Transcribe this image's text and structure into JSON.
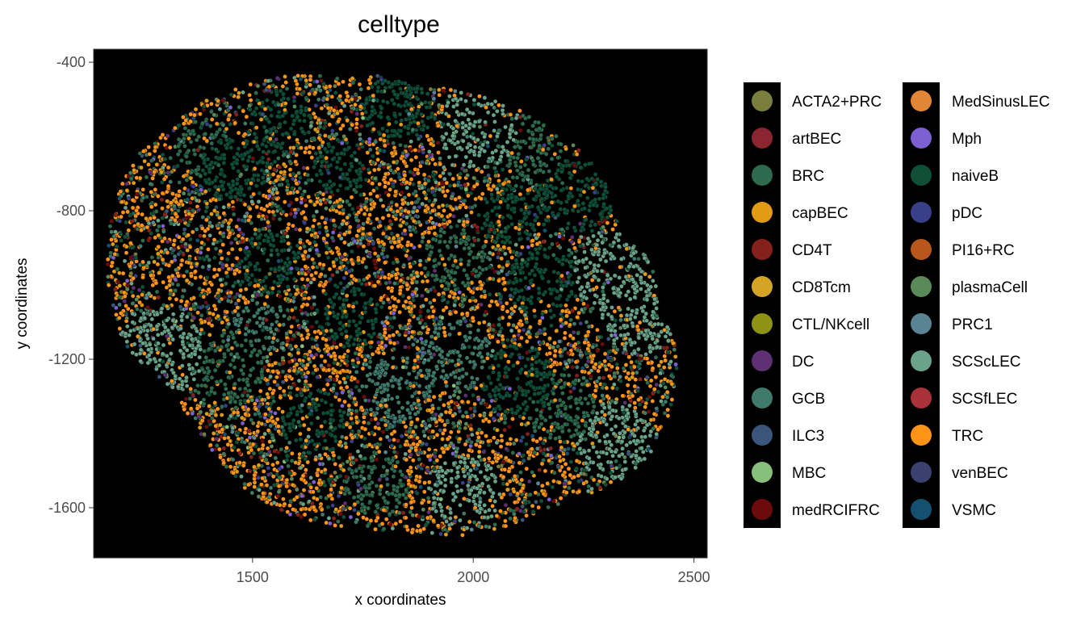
{
  "chart_data": {
    "type": "scatter",
    "title": "celltype",
    "xlabel": "x coordinates",
    "ylabel": "y coordinates",
    "xlim": [
      1140,
      2530
    ],
    "ylim": [
      -1735,
      -365
    ],
    "x_ticks": [
      1500,
      2000,
      2500
    ],
    "y_ticks": [
      -400,
      -800,
      -1200,
      -1600
    ],
    "background": "#000000",
    "grid": false,
    "legend_position": "right",
    "legend": [
      {
        "name": "ACTA2+PRC",
        "color": "#7a7d3c"
      },
      {
        "name": "artBEC",
        "color": "#8b2530"
      },
      {
        "name": "BRC",
        "color": "#2e6b4e"
      },
      {
        "name": "capBEC",
        "color": "#e29b14"
      },
      {
        "name": "CD4T",
        "color": "#86201a"
      },
      {
        "name": "CD8Tcm",
        "color": "#d4a424"
      },
      {
        "name": "CTL/NKcell",
        "color": "#8e9316"
      },
      {
        "name": "DC",
        "color": "#5f2f74"
      },
      {
        "name": "GCB",
        "color": "#3f7a6a"
      },
      {
        "name": "ILC3",
        "color": "#3b5479"
      },
      {
        "name": "MBC",
        "color": "#86c07b"
      },
      {
        "name": "medRCIFRC",
        "color": "#6b0b0b"
      },
      {
        "name": "MedSinusLEC",
        "color": "#e08636"
      },
      {
        "name": "Mph",
        "color": "#7c5fd0"
      },
      {
        "name": "naiveB",
        "color": "#0f4f38"
      },
      {
        "name": "pDC",
        "color": "#3a3f8a"
      },
      {
        "name": "PI16+RC",
        "color": "#b9561c"
      },
      {
        "name": "plasmaCell",
        "color": "#5b8a5a"
      },
      {
        "name": "PRC1",
        "color": "#5a8494"
      },
      {
        "name": "SCScLEC",
        "color": "#6aa389"
      },
      {
        "name": "SCSfLEC",
        "color": "#a8313a"
      },
      {
        "name": "TRC",
        "color": "#ff9416"
      },
      {
        "name": "venBEC",
        "color": "#3b416e"
      },
      {
        "name": "VSMC",
        "color": "#165070"
      }
    ],
    "tissue_outline": [
      [
        1200,
        -730
      ],
      [
        1225,
        -650
      ],
      [
        1300,
        -590
      ],
      [
        1380,
        -510
      ],
      [
        1460,
        -470
      ],
      [
        1560,
        -440
      ],
      [
        1640,
        -430
      ],
      [
        1720,
        -445
      ],
      [
        1780,
        -430
      ],
      [
        1860,
        -460
      ],
      [
        1960,
        -475
      ],
      [
        2060,
        -505
      ],
      [
        2160,
        -560
      ],
      [
        2250,
        -640
      ],
      [
        2300,
        -720
      ],
      [
        2320,
        -800
      ],
      [
        2335,
        -880
      ],
      [
        2380,
        -900
      ],
      [
        2410,
        -960
      ],
      [
        2420,
        -1080
      ],
      [
        2455,
        -1140
      ],
      [
        2465,
        -1260
      ],
      [
        2440,
        -1360
      ],
      [
        2400,
        -1460
      ],
      [
        2340,
        -1520
      ],
      [
        2270,
        -1560
      ],
      [
        2180,
        -1600
      ],
      [
        2080,
        -1650
      ],
      [
        1980,
        -1675
      ],
      [
        1880,
        -1670
      ],
      [
        1780,
        -1660
      ],
      [
        1680,
        -1650
      ],
      [
        1580,
        -1620
      ],
      [
        1490,
        -1560
      ],
      [
        1420,
        -1470
      ],
      [
        1370,
        -1380
      ],
      [
        1320,
        -1290
      ],
      [
        1270,
        -1230
      ],
      [
        1220,
        -1180
      ],
      [
        1185,
        -1090
      ],
      [
        1170,
        -980
      ],
      [
        1175,
        -860
      ],
      [
        1185,
        -780
      ]
    ],
    "clusters": [
      {
        "x": 1290,
        "y": -1180,
        "r": 55,
        "type": "SCScLEC"
      },
      {
        "x": 1440,
        "y": -1230,
        "r": 48,
        "type": "BRC"
      },
      {
        "x": 1460,
        "y": -690,
        "r": 42,
        "type": "naiveB"
      },
      {
        "x": 1390,
        "y": -630,
        "r": 35,
        "type": "BRC"
      },
      {
        "x": 1560,
        "y": -560,
        "r": 40,
        "type": "naiveB"
      },
      {
        "x": 1700,
        "y": -680,
        "r": 36,
        "type": "naiveB"
      },
      {
        "x": 1830,
        "y": -520,
        "r": 45,
        "type": "naiveB"
      },
      {
        "x": 2010,
        "y": -580,
        "r": 50,
        "type": "SCScLEC"
      },
      {
        "x": 2120,
        "y": -640,
        "r": 45,
        "type": "BRC"
      },
      {
        "x": 2230,
        "y": -760,
        "r": 50,
        "type": "naiveB"
      },
      {
        "x": 2310,
        "y": -960,
        "r": 48,
        "type": "SCScLEC"
      },
      {
        "x": 2380,
        "y": -1080,
        "r": 50,
        "type": "SCScLEC"
      },
      {
        "x": 2160,
        "y": -990,
        "r": 45,
        "type": "naiveB"
      },
      {
        "x": 1960,
        "y": -930,
        "r": 40,
        "type": "BRC"
      },
      {
        "x": 1540,
        "y": -940,
        "r": 38,
        "type": "naiveB"
      },
      {
        "x": 1720,
        "y": -1080,
        "r": 42,
        "type": "naiveB"
      },
      {
        "x": 1820,
        "y": -1280,
        "r": 45,
        "type": "GCB"
      },
      {
        "x": 1960,
        "y": -1190,
        "r": 45,
        "type": "GCB"
      },
      {
        "x": 2100,
        "y": -1260,
        "r": 45,
        "type": "naiveB"
      },
      {
        "x": 2200,
        "y": -1330,
        "r": 42,
        "type": "BRC"
      },
      {
        "x": 2320,
        "y": -1420,
        "r": 48,
        "type": "SCScLEC"
      },
      {
        "x": 1980,
        "y": -1560,
        "r": 45,
        "type": "SCScLEC"
      },
      {
        "x": 1780,
        "y": -1540,
        "r": 40,
        "type": "BRC"
      },
      {
        "x": 1640,
        "y": -1370,
        "r": 40,
        "type": "naiveB"
      },
      {
        "x": 1520,
        "y": -1110,
        "r": 35,
        "type": "GCB"
      },
      {
        "x": 2080,
        "y": -810,
        "r": 38,
        "type": "naiveB"
      }
    ],
    "point_mix": [
      {
        "type": "TRC",
        "weight": 42
      },
      {
        "type": "capBEC",
        "weight": 8
      },
      {
        "type": "BRC",
        "weight": 10
      },
      {
        "type": "naiveB",
        "weight": 8
      },
      {
        "type": "GCB",
        "weight": 5
      },
      {
        "type": "SCScLEC",
        "weight": 5
      },
      {
        "type": "CD4T",
        "weight": 4
      },
      {
        "type": "medRCIFRC",
        "weight": 3
      },
      {
        "type": "DC",
        "weight": 2
      },
      {
        "type": "Mph",
        "weight": 2
      },
      {
        "type": "plasmaCell",
        "weight": 3
      },
      {
        "type": "pDC",
        "weight": 2
      },
      {
        "type": "ILC3",
        "weight": 2
      },
      {
        "type": "VSMC",
        "weight": 1
      },
      {
        "type": "MBC",
        "weight": 1
      },
      {
        "type": "ACTA2+PRC",
        "weight": 1
      },
      {
        "type": "PRC1",
        "weight": 1
      }
    ]
  }
}
